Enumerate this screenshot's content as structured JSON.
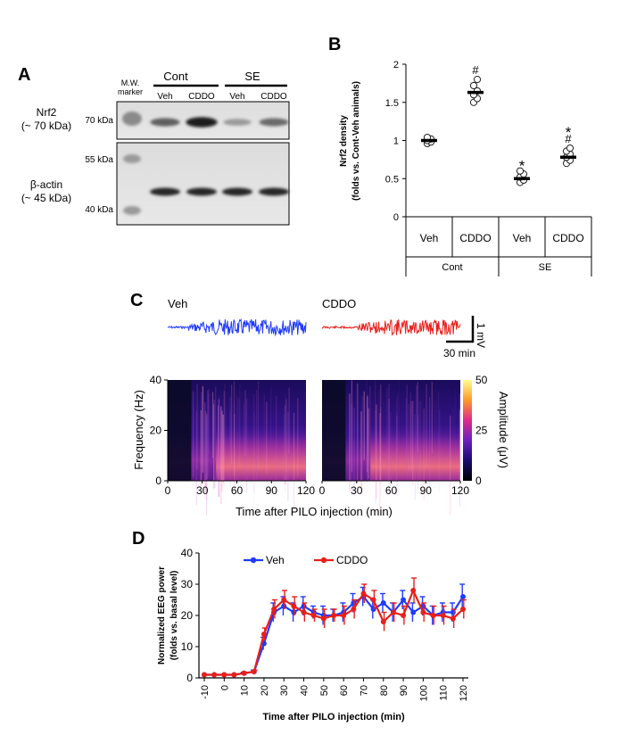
{
  "panel_labels": {
    "a": "A",
    "b": "B",
    "c": "C",
    "d": "D"
  },
  "panel_a": {
    "mw_marker": [
      "M.W.",
      "marker"
    ],
    "groups": [
      "Cont",
      "SE"
    ],
    "lanes": [
      "Veh",
      "CDDO",
      "Veh",
      "CDDO"
    ],
    "row_labels": [
      {
        "name": "Nrf2",
        "size": "(~ 70 kDa)"
      },
      {
        "name": "β-actin",
        "size": "(~ 45 kDa)"
      }
    ],
    "markers": [
      "70 kDa",
      "55 kDa",
      "40 kDa"
    ],
    "band_intensity": {
      "nrf2": [
        0.55,
        0.9,
        0.25,
        0.5
      ],
      "actin": [
        0.85,
        0.85,
        0.85,
        0.85
      ]
    }
  },
  "panel_b": {
    "chart_data": {
      "type": "scatter",
      "ylabel": "Nrf2 density",
      "ylabel2": "(folds vs. Cont-Veh animals)",
      "ylim": [
        0,
        2
      ],
      "yticks": [
        "0",
        "0.5",
        "1",
        "1.5",
        "2"
      ],
      "categories": [
        "Veh",
        "CDDO",
        "Veh",
        "CDDO"
      ],
      "groups": [
        "Cont",
        "Cont",
        "SE",
        "SE"
      ],
      "group_labels": [
        "Cont",
        "SE"
      ],
      "means": [
        1.0,
        1.63,
        0.5,
        0.78
      ],
      "points": [
        [
          0.96,
          0.98,
          1.0,
          1.02,
          1.04
        ],
        [
          1.5,
          1.55,
          1.6,
          1.65,
          1.72,
          1.8
        ],
        [
          0.45,
          0.48,
          0.52,
          0.56,
          0.6
        ],
        [
          0.7,
          0.74,
          0.78,
          0.82,
          0.86,
          0.9
        ]
      ],
      "annotations": [
        {
          "index": 1,
          "text": "#"
        },
        {
          "index": 2,
          "text": "*"
        },
        {
          "index": 3,
          "text": "*"
        },
        {
          "index": 3,
          "text": "#"
        }
      ]
    }
  },
  "panel_c": {
    "trace_labels": [
      "Veh",
      "CDDO"
    ],
    "trace_colors": [
      "#1f3bff",
      "#e8201a"
    ],
    "scale_v": "1 mV",
    "scale_t": "30 min",
    "chart_data": {
      "type": "heatmap",
      "xlabel": "Time after PILO injection (min)",
      "ylabel": "Frequency (Hz)",
      "xticks": [
        "0",
        "30",
        "60",
        "90",
        "120"
      ],
      "yticks": [
        "0",
        "20",
        "40"
      ],
      "colorbar_label": "Amplitude (μV)",
      "colorbar_ticks": [
        "0",
        "25",
        "50"
      ],
      "xlim": [
        0,
        120
      ],
      "ylim": [
        0,
        40
      ]
    }
  },
  "panel_d": {
    "chart_data": {
      "type": "line",
      "title": "",
      "xlabel": "Time after PILO injection (min)",
      "ylabel": "Normalized EEG power",
      "ylabel2": "(folds vs. basal level)",
      "ylim": [
        0,
        40
      ],
      "yticks": [
        "0",
        "10",
        "20",
        "30",
        "40"
      ],
      "xticks": [
        "-10",
        "0",
        "10",
        "20",
        "30",
        "40",
        "50",
        "60",
        "70",
        "80",
        "90",
        "100",
        "110",
        "120"
      ],
      "x": [
        -10,
        -5,
        0,
        5,
        10,
        15,
        20,
        25,
        30,
        35,
        40,
        45,
        50,
        55,
        60,
        65,
        70,
        75,
        80,
        85,
        90,
        95,
        100,
        105,
        110,
        115,
        120
      ],
      "series": [
        {
          "name": "Veh",
          "color": "#1f3bff",
          "values": [
            1,
            1,
            1,
            1,
            1.5,
            2,
            11,
            21,
            23,
            21,
            23,
            21,
            20,
            20,
            21,
            24,
            26,
            22,
            24,
            21,
            25,
            21,
            23,
            20,
            21,
            21,
            26
          ],
          "errors": [
            0,
            0,
            0,
            0,
            0.3,
            0.5,
            2,
            3,
            3,
            3,
            3,
            2,
            3,
            2,
            3,
            3,
            3,
            3,
            3,
            3,
            3,
            3,
            3,
            3,
            3,
            3,
            4
          ]
        },
        {
          "name": "CDDO",
          "color": "#e8201a",
          "values": [
            1,
            1,
            1,
            1,
            1.5,
            2,
            14,
            22,
            25,
            23,
            21,
            20,
            19,
            20,
            20,
            22,
            27,
            25,
            18,
            21,
            20,
            28,
            21,
            20,
            20,
            19,
            22
          ],
          "errors": [
            0,
            0,
            0,
            0,
            0.3,
            0.5,
            2,
            3,
            3,
            3,
            3,
            2,
            3,
            2,
            3,
            3,
            3,
            3,
            3,
            3,
            3,
            4,
            3,
            3,
            3,
            3,
            3
          ]
        }
      ]
    }
  }
}
